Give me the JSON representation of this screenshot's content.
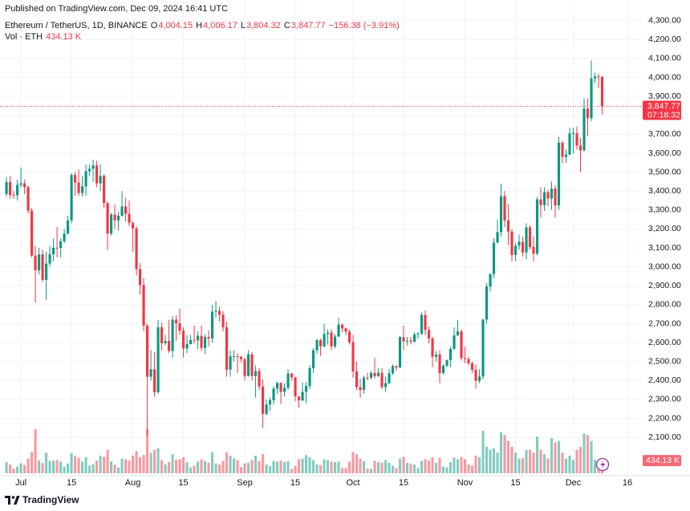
{
  "chart_data": {
    "type": "candlestick",
    "published": "Published on TradingView.com, Dec 09, 2024 16:41 UTC",
    "title": "Ethereum / TetherUS, 1D, BINANCE",
    "ohlc_legend": [
      {
        "key": "O",
        "label": "4,004.15"
      },
      {
        "key": "H",
        "label": "4,006.17"
      },
      {
        "key": "L",
        "label": "3,804.32"
      },
      {
        "key": "C",
        "label": "3,847.77"
      }
    ],
    "change_label": "−156.38 (−3.91%)",
    "volume_title": "Vol · ETH",
    "volume_label": "434.13 K",
    "last_price_label": "3,847.77",
    "countdown": "07:18:32",
    "brand": "TradingView",
    "up_color": "#089981",
    "down_color": "#f23645",
    "grid": true,
    "open": [
      3385,
      3448,
      3380,
      3378,
      3433,
      3441,
      3421,
      3296,
      3059,
      2982,
      3066,
      2931,
      3017,
      3066,
      3101,
      3100,
      3135,
      3176,
      3245,
      3485,
      3445,
      3390,
      3425,
      3505,
      3518,
      3536,
      3441,
      3480,
      3337,
      3176,
      3276,
      3245,
      3270,
      3319,
      3280,
      3232,
      3203,
      2988,
      2904,
      2689,
      2420,
      2459,
      2338,
      2681,
      2597,
      2609,
      2556,
      2721,
      2702,
      2663,
      2569,
      2592,
      2614,
      2612,
      2636,
      2572,
      2630,
      2622,
      2763,
      2768,
      2747,
      2681,
      2457,
      2528,
      2528,
      2525,
      2513,
      2424,
      2538,
      2423,
      2450,
      2368,
      2224,
      2273,
      2296,
      2357,
      2387,
      2340,
      2362,
      2437,
      2417,
      2316,
      2295,
      2340,
      2371,
      2465,
      2560,
      2613,
      2580,
      2646,
      2653,
      2580,
      2632,
      2695,
      2675,
      2658,
      2602,
      2448,
      2365,
      2350,
      2415,
      2414,
      2440,
      2423,
      2441,
      2365,
      2386,
      2438,
      2476,
      2469,
      2629,
      2607,
      2611,
      2605,
      2643,
      2648,
      2746,
      2667,
      2622,
      2525,
      2537,
      2439,
      2478,
      2508,
      2567,
      2638,
      2659,
      2518,
      2513,
      2491,
      2457,
      2398,
      2421,
      2722,
      2896,
      2962,
      3128,
      3184,
      3373,
      3245,
      3186,
      3063,
      3112,
      3132,
      3076,
      3208,
      3105,
      3070,
      3356,
      3326,
      3394,
      3361,
      3413,
      3324,
      3655,
      3581,
      3593,
      3704,
      3706,
      3640,
      3615,
      3836,
      3785,
      3995,
      4005,
      4004.15
    ],
    "high": [
      3475,
      3480,
      3400,
      3460,
      3525,
      3460,
      3430,
      3310,
      3110,
      3100,
      3090,
      3080,
      3110,
      3150,
      3210,
      3150,
      3200,
      3270,
      3495,
      3500,
      3515,
      3480,
      3540,
      3540,
      3565,
      3560,
      3540,
      3490,
      3345,
      3285,
      3330,
      3290,
      3400,
      3365,
      3350,
      3240,
      3215,
      3020,
      2940,
      2700,
      2560,
      2550,
      2720,
      2705,
      2640,
      2720,
      2740,
      2745,
      2780,
      2680,
      2640,
      2640,
      2690,
      2660,
      2690,
      2645,
      2665,
      2800,
      2820,
      2790,
      2765,
      2710,
      2560,
      2560,
      2545,
      2530,
      2520,
      2560,
      2550,
      2480,
      2465,
      2405,
      2300,
      2310,
      2370,
      2395,
      2390,
      2385,
      2460,
      2440,
      2420,
      2315,
      2390,
      2390,
      2480,
      2570,
      2620,
      2620,
      2700,
      2670,
      2670,
      2645,
      2730,
      2700,
      2680,
      2670,
      2640,
      2500,
      2410,
      2425,
      2440,
      2450,
      2520,
      2465,
      2465,
      2420,
      2460,
      2485,
      2480,
      2635,
      2690,
      2630,
      2630,
      2655,
      2655,
      2760,
      2770,
      2685,
      2630,
      2555,
      2560,
      2485,
      2510,
      2580,
      2680,
      2720,
      2670,
      2580,
      2525,
      2500,
      2485,
      2460,
      2725,
      2915,
      2965,
      3150,
      3250,
      3440,
      3400,
      3330,
      3200,
      3125,
      3170,
      3160,
      3230,
      3220,
      3160,
      3370,
      3420,
      3420,
      3410,
      3450,
      3430,
      3685,
      3665,
      3620,
      3735,
      3735,
      3740,
      3680,
      3890,
      3890,
      4090,
      4025,
      4020,
      4006.17
    ],
    "low": [
      3370,
      3360,
      3360,
      3350,
      3420,
      3385,
      3280,
      3050,
      2810,
      2960,
      2920,
      2825,
      3000,
      3030,
      3050,
      3050,
      3125,
      3170,
      3230,
      3375,
      3375,
      3370,
      3375,
      3480,
      3450,
      3420,
      3400,
      3310,
      3090,
      3165,
      3200,
      3190,
      3265,
      3240,
      3215,
      3080,
      2955,
      2855,
      2660,
      2111,
      2400,
      2315,
      2330,
      2560,
      2585,
      2545,
      2520,
      2610,
      2640,
      2520,
      2545,
      2590,
      2595,
      2565,
      2555,
      2540,
      2580,
      2600,
      2730,
      2710,
      2660,
      2420,
      2420,
      2500,
      2440,
      2495,
      2400,
      2420,
      2400,
      2310,
      2350,
      2150,
      2215,
      2240,
      2275,
      2330,
      2275,
      2315,
      2350,
      2400,
      2290,
      2255,
      2290,
      2280,
      2355,
      2440,
      2540,
      2530,
      2575,
      2590,
      2560,
      2570,
      2630,
      2655,
      2640,
      2590,
      2415,
      2350,
      2310,
      2330,
      2400,
      2405,
      2410,
      2420,
      2355,
      2340,
      2380,
      2430,
      2450,
      2465,
      2560,
      2585,
      2590,
      2600,
      2620,
      2640,
      2640,
      2595,
      2470,
      2500,
      2385,
      2430,
      2470,
      2470,
      2560,
      2635,
      2505,
      2490,
      2480,
      2440,
      2357,
      2385,
      2405,
      2700,
      2870,
      2940,
      3125,
      3160,
      3210,
      3115,
      3030,
      3030,
      3090,
      3055,
      3040,
      3090,
      3030,
      3060,
      3260,
      3295,
      3320,
      3300,
      3260,
      3300,
      3545,
      3550,
      3590,
      3600,
      3620,
      3500,
      3610,
      3690,
      3770,
      3970,
      3945,
      3804.32
    ],
    "close": [
      3448,
      3380,
      3378,
      3433,
      3441,
      3421,
      3296,
      3059,
      2982,
      3066,
      2931,
      3017,
      3066,
      3101,
      3100,
      3135,
      3176,
      3245,
      3485,
      3445,
      3390,
      3425,
      3505,
      3518,
      3536,
      3441,
      3480,
      3337,
      3176,
      3276,
      3245,
      3270,
      3319,
      3280,
      3232,
      3203,
      2988,
      2904,
      2689,
      2420,
      2459,
      2338,
      2681,
      2597,
      2609,
      2556,
      2721,
      2702,
      2663,
      2569,
      2592,
      2614,
      2612,
      2636,
      2572,
      2630,
      2622,
      2763,
      2768,
      2747,
      2681,
      2457,
      2528,
      2528,
      2525,
      2513,
      2424,
      2538,
      2423,
      2450,
      2368,
      2224,
      2273,
      2296,
      2357,
      2387,
      2340,
      2362,
      2437,
      2417,
      2316,
      2295,
      2340,
      2371,
      2465,
      2560,
      2613,
      2580,
      2646,
      2653,
      2580,
      2632,
      2695,
      2675,
      2658,
      2602,
      2448,
      2365,
      2350,
      2415,
      2414,
      2440,
      2423,
      2441,
      2365,
      2386,
      2438,
      2476,
      2469,
      2629,
      2607,
      2611,
      2605,
      2643,
      2648,
      2746,
      2667,
      2622,
      2525,
      2537,
      2439,
      2478,
      2508,
      2567,
      2638,
      2659,
      2518,
      2513,
      2491,
      2457,
      2398,
      2421,
      2722,
      2896,
      2962,
      3128,
      3184,
      3373,
      3245,
      3186,
      3063,
      3112,
      3132,
      3076,
      3208,
      3105,
      3070,
      3356,
      3326,
      3394,
      3361,
      3413,
      3324,
      3655,
      3581,
      3593,
      3704,
      3706,
      3640,
      3615,
      3836,
      3785,
      3995,
      4005,
      4004.15,
      3847.77
    ],
    "volume": [
      380000,
      300000,
      160000,
      230000,
      340000,
      280000,
      500000,
      720000,
      1500000,
      450000,
      350000,
      700000,
      420000,
      430000,
      450000,
      400000,
      220000,
      330000,
      680000,
      580000,
      520000,
      400000,
      550000,
      260000,
      310000,
      430000,
      600000,
      560000,
      800000,
      400000,
      290000,
      200000,
      500000,
      470000,
      430000,
      600000,
      750000,
      550000,
      620000,
      1500000,
      700000,
      800000,
      850000,
      450000,
      300000,
      380000,
      650000,
      460000,
      480000,
      550000,
      380000,
      200000,
      260000,
      400000,
      470000,
      420000,
      360000,
      720000,
      330000,
      300000,
      420000,
      720000,
      600000,
      500000,
      450000,
      210000,
      330000,
      360000,
      450000,
      600000,
      420000,
      650000,
      300000,
      250000,
      420000,
      400000,
      430000,
      380000,
      420000,
      150000,
      250000,
      480000,
      500000,
      620000,
      550000,
      450000,
      300000,
      280000,
      470000,
      450000,
      400000,
      380000,
      400000,
      180000,
      180000,
      400000,
      720000,
      650000,
      500000,
      420000,
      160000,
      150000,
      430000,
      380000,
      360000,
      450000,
      360000,
      260000,
      180000,
      500000,
      550000,
      350000,
      320000,
      300000,
      180000,
      420000,
      480000,
      430000,
      550000,
      360000,
      520000,
      230000,
      200000,
      380000,
      540000,
      480000,
      550000,
      480000,
      300000,
      260000,
      600000,
      550000,
      1450000,
      900000,
      800000,
      850000,
      700000,
      1400000,
      1300000,
      1100000,
      900000,
      700000,
      500000,
      520000,
      800000,
      800000,
      700000,
      1250000,
      800000,
      650000,
      500000,
      1200000,
      1050000,
      1100000,
      700000,
      500000,
      600000,
      450000,
      800000,
      900000,
      1350000,
      1300000,
      1100000,
      450000,
      420000,
      434130
    ],
    "xlim": [
      -1.8,
      176
    ],
    "xticks": [
      {
        "value": 4,
        "label": "Jul"
      },
      {
        "value": 18,
        "label": "15"
      },
      {
        "value": 35,
        "label": "Aug"
      },
      {
        "value": 49,
        "label": "15"
      },
      {
        "value": 66,
        "label": "Sep"
      },
      {
        "value": 80,
        "label": "15"
      },
      {
        "value": 96,
        "label": "Oct"
      },
      {
        "value": 110,
        "label": "15"
      },
      {
        "value": 127,
        "label": "Nov"
      },
      {
        "value": 141,
        "label": "15"
      },
      {
        "value": 157,
        "label": "Dec"
      },
      {
        "value": 172,
        "label": "16"
      }
    ],
    "ylim": [
      1910,
      4375
    ],
    "yticks": [
      {
        "value": 4300,
        "label": "4,300.00"
      },
      {
        "value": 4200,
        "label": "4,200.00"
      },
      {
        "value": 4100,
        "label": "4,100.00"
      },
      {
        "value": 4000,
        "label": "4,000.00"
      },
      {
        "value": 3900,
        "label": "3,900.00"
      },
      {
        "value": 3800,
        "label": "3,800.00"
      },
      {
        "value": 3700,
        "label": "3,700.00"
      },
      {
        "value": 3600,
        "label": "3,600.00"
      },
      {
        "value": 3500,
        "label": "3,500.00"
      },
      {
        "value": 3400,
        "label": "3,400.00"
      },
      {
        "value": 3300,
        "label": "3,300.00"
      },
      {
        "value": 3200,
        "label": "3,200.00"
      },
      {
        "value": 3100,
        "label": "3,100.00"
      },
      {
        "value": 3000,
        "label": "3,000.00"
      },
      {
        "value": 2900,
        "label": "2,900.00"
      },
      {
        "value": 2800,
        "label": "2,800.00"
      },
      {
        "value": 2700,
        "label": "2,700.00"
      },
      {
        "value": 2600,
        "label": "2,600.00"
      },
      {
        "value": 2500,
        "label": "2,500.00"
      },
      {
        "value": 2400,
        "label": "2,400.00"
      },
      {
        "value": 2300,
        "label": "2,300.00"
      },
      {
        "value": 2200,
        "label": "2,200.00"
      },
      {
        "value": 2100,
        "label": "2,100.00"
      }
    ]
  }
}
